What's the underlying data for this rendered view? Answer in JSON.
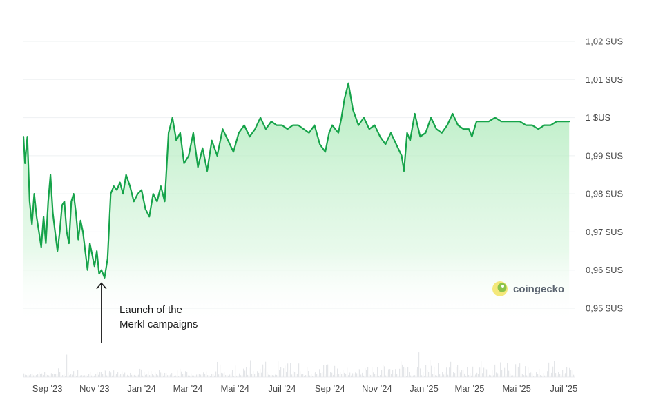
{
  "chart_data": {
    "type": "line",
    "y_unit": "$US",
    "ylim": [
      0.95,
      1.02
    ],
    "y_ticks": [
      "1,02 $US",
      "1,01 $US",
      "1 $US",
      "0,99 $US",
      "0,98 $US",
      "0,97 $US",
      "0,96 $US",
      "0,95 $US"
    ],
    "y_tick_values": [
      1.02,
      1.01,
      1.0,
      0.99,
      0.98,
      0.97,
      0.96,
      0.95
    ],
    "x_ticks": [
      "Sep '23",
      "Nov '23",
      "Jan '24",
      "Mar '24",
      "Mai '24",
      "Juil '24",
      "Sep '24",
      "Nov '24",
      "Jan '25",
      "Mar '25",
      "Mai '25",
      "Juil '25"
    ],
    "x_tick_dates": [
      "2023-09-01",
      "2023-11-01",
      "2024-01-01",
      "2024-03-01",
      "2024-05-01",
      "2024-07-01",
      "2024-09-01",
      "2024-11-01",
      "2025-01-01",
      "2025-03-01",
      "2025-05-01",
      "2025-07-01"
    ],
    "grid": "horizontal",
    "line_color": "#16a34a",
    "fill_color": "#bbf0c6",
    "series": [
      {
        "x": [
          "2023-08-01",
          "2023-08-03",
          "2023-08-06",
          "2023-08-09",
          "2023-08-12",
          "2023-08-15",
          "2023-08-18",
          "2023-08-21",
          "2023-08-24",
          "2023-08-27",
          "2023-08-30",
          "2023-09-02",
          "2023-09-05",
          "2023-09-08",
          "2023-09-11",
          "2023-09-14",
          "2023-09-17",
          "2023-09-20",
          "2023-09-23",
          "2023-09-26",
          "2023-09-29",
          "2023-10-02",
          "2023-10-05",
          "2023-10-08",
          "2023-10-11",
          "2023-10-14",
          "2023-10-17",
          "2023-10-20",
          "2023-10-23",
          "2023-10-26",
          "2023-10-29",
          "2023-11-01",
          "2023-11-04",
          "2023-11-07",
          "2023-11-10",
          "2023-11-14",
          "2023-11-18",
          "2023-11-22",
          "2023-11-26",
          "2023-11-30",
          "2023-12-04",
          "2023-12-08",
          "2023-12-12",
          "2023-12-17",
          "2023-12-22",
          "2023-12-27",
          "2024-01-01",
          "2024-01-06",
          "2024-01-11",
          "2024-01-16",
          "2024-01-21",
          "2024-01-26",
          "2024-01-31",
          "2024-02-05",
          "2024-02-10",
          "2024-02-15",
          "2024-02-20",
          "2024-02-25",
          "2024-03-02",
          "2024-03-08",
          "2024-03-14",
          "2024-03-20",
          "2024-03-26",
          "2024-04-01",
          "2024-04-08",
          "2024-04-15",
          "2024-04-22",
          "2024-04-29",
          "2024-05-06",
          "2024-05-13",
          "2024-05-20",
          "2024-05-27",
          "2024-06-03",
          "2024-06-10",
          "2024-06-17",
          "2024-06-24",
          "2024-07-01",
          "2024-07-08",
          "2024-07-15",
          "2024-07-22",
          "2024-07-29",
          "2024-08-05",
          "2024-08-12",
          "2024-08-19",
          "2024-08-26",
          "2024-08-31",
          "2024-09-04",
          "2024-09-08",
          "2024-09-12",
          "2024-09-16",
          "2024-09-20",
          "2024-09-25",
          "2024-10-01",
          "2024-10-08",
          "2024-10-15",
          "2024-10-22",
          "2024-10-29",
          "2024-11-05",
          "2024-11-12",
          "2024-11-19",
          "2024-11-26",
          "2024-12-03",
          "2024-12-06",
          "2024-12-10",
          "2024-12-14",
          "2024-12-20",
          "2024-12-27",
          "2025-01-03",
          "2025-01-10",
          "2025-01-17",
          "2025-01-24",
          "2025-01-31",
          "2025-02-07",
          "2025-02-14",
          "2025-02-21",
          "2025-02-28",
          "2025-03-04",
          "2025-03-10",
          "2025-03-18",
          "2025-03-26",
          "2025-04-03",
          "2025-04-11",
          "2025-04-19",
          "2025-04-27",
          "2025-05-05",
          "2025-05-13",
          "2025-05-21",
          "2025-05-29",
          "2025-06-06",
          "2025-06-14",
          "2025-06-22",
          "2025-06-30",
          "2025-07-08"
        ],
        "values": [
          0.995,
          0.988,
          0.995,
          0.978,
          0.972,
          0.98,
          0.974,
          0.97,
          0.966,
          0.974,
          0.967,
          0.978,
          0.985,
          0.975,
          0.97,
          0.965,
          0.97,
          0.977,
          0.978,
          0.97,
          0.967,
          0.978,
          0.98,
          0.975,
          0.968,
          0.973,
          0.97,
          0.965,
          0.96,
          0.967,
          0.964,
          0.961,
          0.965,
          0.959,
          0.96,
          0.958,
          0.963,
          0.98,
          0.982,
          0.981,
          0.983,
          0.98,
          0.985,
          0.982,
          0.978,
          0.98,
          0.981,
          0.976,
          0.974,
          0.98,
          0.978,
          0.982,
          0.978,
          0.996,
          1.0,
          0.994,
          0.996,
          0.988,
          0.99,
          0.996,
          0.987,
          0.992,
          0.986,
          0.994,
          0.99,
          0.997,
          0.994,
          0.991,
          0.996,
          0.998,
          0.995,
          0.997,
          1.0,
          0.997,
          0.999,
          0.998,
          0.998,
          0.997,
          0.998,
          0.998,
          0.997,
          0.996,
          0.998,
          0.993,
          0.991,
          0.996,
          0.998,
          0.997,
          0.996,
          1.0,
          1.005,
          1.009,
          1.002,
          0.998,
          1.0,
          0.997,
          0.998,
          0.995,
          0.993,
          0.996,
          0.993,
          0.99,
          0.986,
          0.996,
          0.994,
          1.001,
          0.995,
          0.996,
          1.0,
          0.997,
          0.996,
          0.998,
          1.001,
          0.998,
          0.997,
          0.997,
          0.995,
          0.999,
          0.999,
          0.999,
          1.0,
          0.999,
          0.999,
          0.999,
          0.999,
          0.998,
          0.998,
          0.997,
          0.998,
          0.998,
          0.999,
          0.999,
          0.999
        ]
      }
    ],
    "annotation": {
      "text_lines": [
        "Launch of the",
        "Merkl campaigns"
      ],
      "date": "2023-11-10",
      "value": 0.958
    },
    "watermark": "coingecko"
  }
}
